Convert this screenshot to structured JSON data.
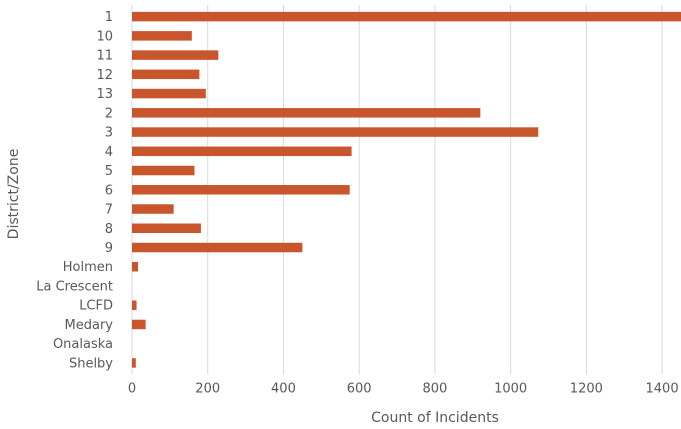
{
  "chart_data": {
    "type": "bar",
    "orientation": "horizontal",
    "categories": [
      "1",
      "10",
      "11",
      "12",
      "13",
      "2",
      "3",
      "4",
      "5",
      "6",
      "7",
      "8",
      "9",
      "Holmen",
      "La Crescent",
      "LCFD",
      "Medary",
      "Onalaska",
      "Shelby"
    ],
    "values": [
      1450,
      158,
      228,
      178,
      195,
      920,
      1073,
      580,
      165,
      575,
      110,
      182,
      450,
      16,
      0,
      12,
      36,
      0,
      10
    ],
    "xlabel": "Count of Incidents",
    "ylabel": "District/Zone",
    "xlim": [
      0,
      1450
    ],
    "xticks": [
      0,
      200,
      400,
      600,
      800,
      1000,
      1200,
      1400
    ],
    "grid": "vertical",
    "legend": "none",
    "colors": {
      "bar": "#C8552B",
      "grid": "#D9D9D9",
      "text": "#595959"
    }
  }
}
